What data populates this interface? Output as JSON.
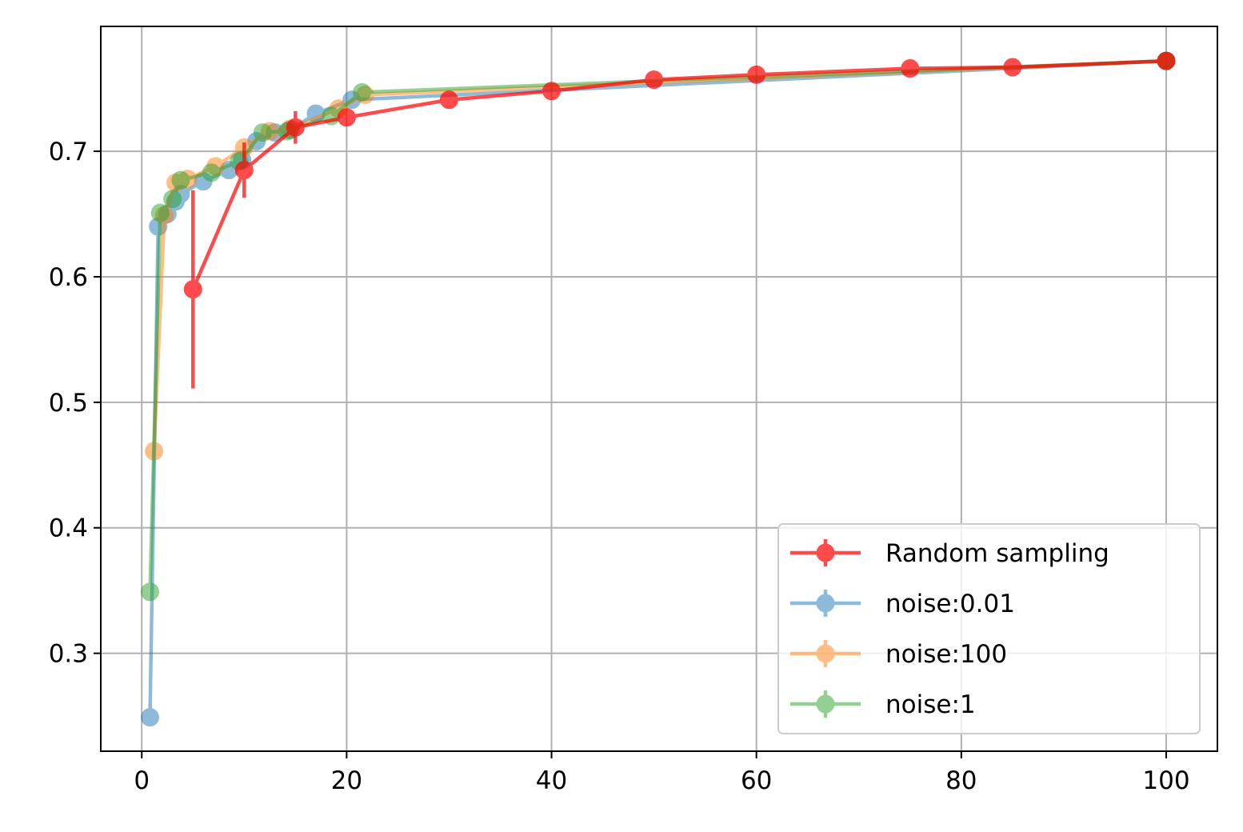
{
  "chart_data": {
    "type": "line",
    "title": "",
    "xlabel": "",
    "ylabel": "",
    "xlim": [
      -4,
      105
    ],
    "ylim": [
      0.222,
      0.7995
    ],
    "x_ticks": [
      0,
      20,
      40,
      60,
      80,
      100
    ],
    "x_tick_labels": [
      "0",
      "20",
      "40",
      "60",
      "80",
      "100"
    ],
    "y_ticks": [
      0.3,
      0.4,
      0.5,
      0.6,
      0.7
    ],
    "y_tick_labels": [
      "0.3",
      "0.4",
      "0.5",
      "0.6",
      "0.7"
    ],
    "grid": true,
    "legend_position": "lower right",
    "error_bars": true,
    "series": [
      {
        "name": "Random sampling",
        "color": "#ff0000",
        "alpha": 0.7,
        "x": [
          5,
          10,
          15,
          20,
          30,
          40,
          50,
          60,
          75,
          85,
          100
        ],
        "y": [
          0.59,
          0.685,
          0.719,
          0.727,
          0.741,
          0.748,
          0.757,
          0.761,
          0.766,
          0.767,
          0.772
        ],
        "err": [
          0.079,
          0.022,
          0.013,
          0.005,
          0.004,
          0.003,
          0.002,
          0.002,
          0.002,
          0.002,
          0.001
        ]
      },
      {
        "name": "noise:0.01",
        "color": "#1f77b4",
        "alpha": 0.5,
        "x": [
          0.8,
          1.6,
          2.5,
          3.3,
          3.8,
          6.0,
          8.5,
          9.8,
          11.2,
          13.0,
          14.5,
          17.0,
          20.5,
          100
        ],
        "y": [
          0.249,
          0.64,
          0.65,
          0.66,
          0.666,
          0.676,
          0.685,
          0.693,
          0.708,
          0.715,
          0.717,
          0.73,
          0.741,
          0.772
        ],
        "err": [
          0,
          0,
          0,
          0,
          0,
          0,
          0,
          0,
          0,
          0,
          0,
          0,
          0,
          0
        ]
      },
      {
        "name": "noise:100",
        "color": "#ff7f0e",
        "alpha": 0.5,
        "x": [
          1.2,
          2.2,
          3.3,
          4.5,
          7.2,
          10.0,
          12.5,
          14.5,
          19.2,
          21.8,
          100
        ],
        "y": [
          0.461,
          0.649,
          0.675,
          0.678,
          0.688,
          0.703,
          0.716,
          0.718,
          0.734,
          0.745,
          0.772
        ],
        "err": [
          0,
          0,
          0,
          0,
          0,
          0,
          0,
          0,
          0,
          0,
          0
        ]
      },
      {
        "name": "noise:1",
        "color": "#2ca02c",
        "alpha": 0.5,
        "x": [
          0.8,
          1.8,
          3.0,
          3.8,
          6.8,
          9.5,
          11.8,
          14.2,
          18.5,
          21.5,
          100
        ],
        "y": [
          0.349,
          0.651,
          0.662,
          0.677,
          0.683,
          0.692,
          0.715,
          0.716,
          0.728,
          0.747,
          0.772
        ],
        "err": [
          0,
          0,
          0,
          0,
          0,
          0,
          0,
          0,
          0,
          0,
          0
        ]
      }
    ]
  }
}
